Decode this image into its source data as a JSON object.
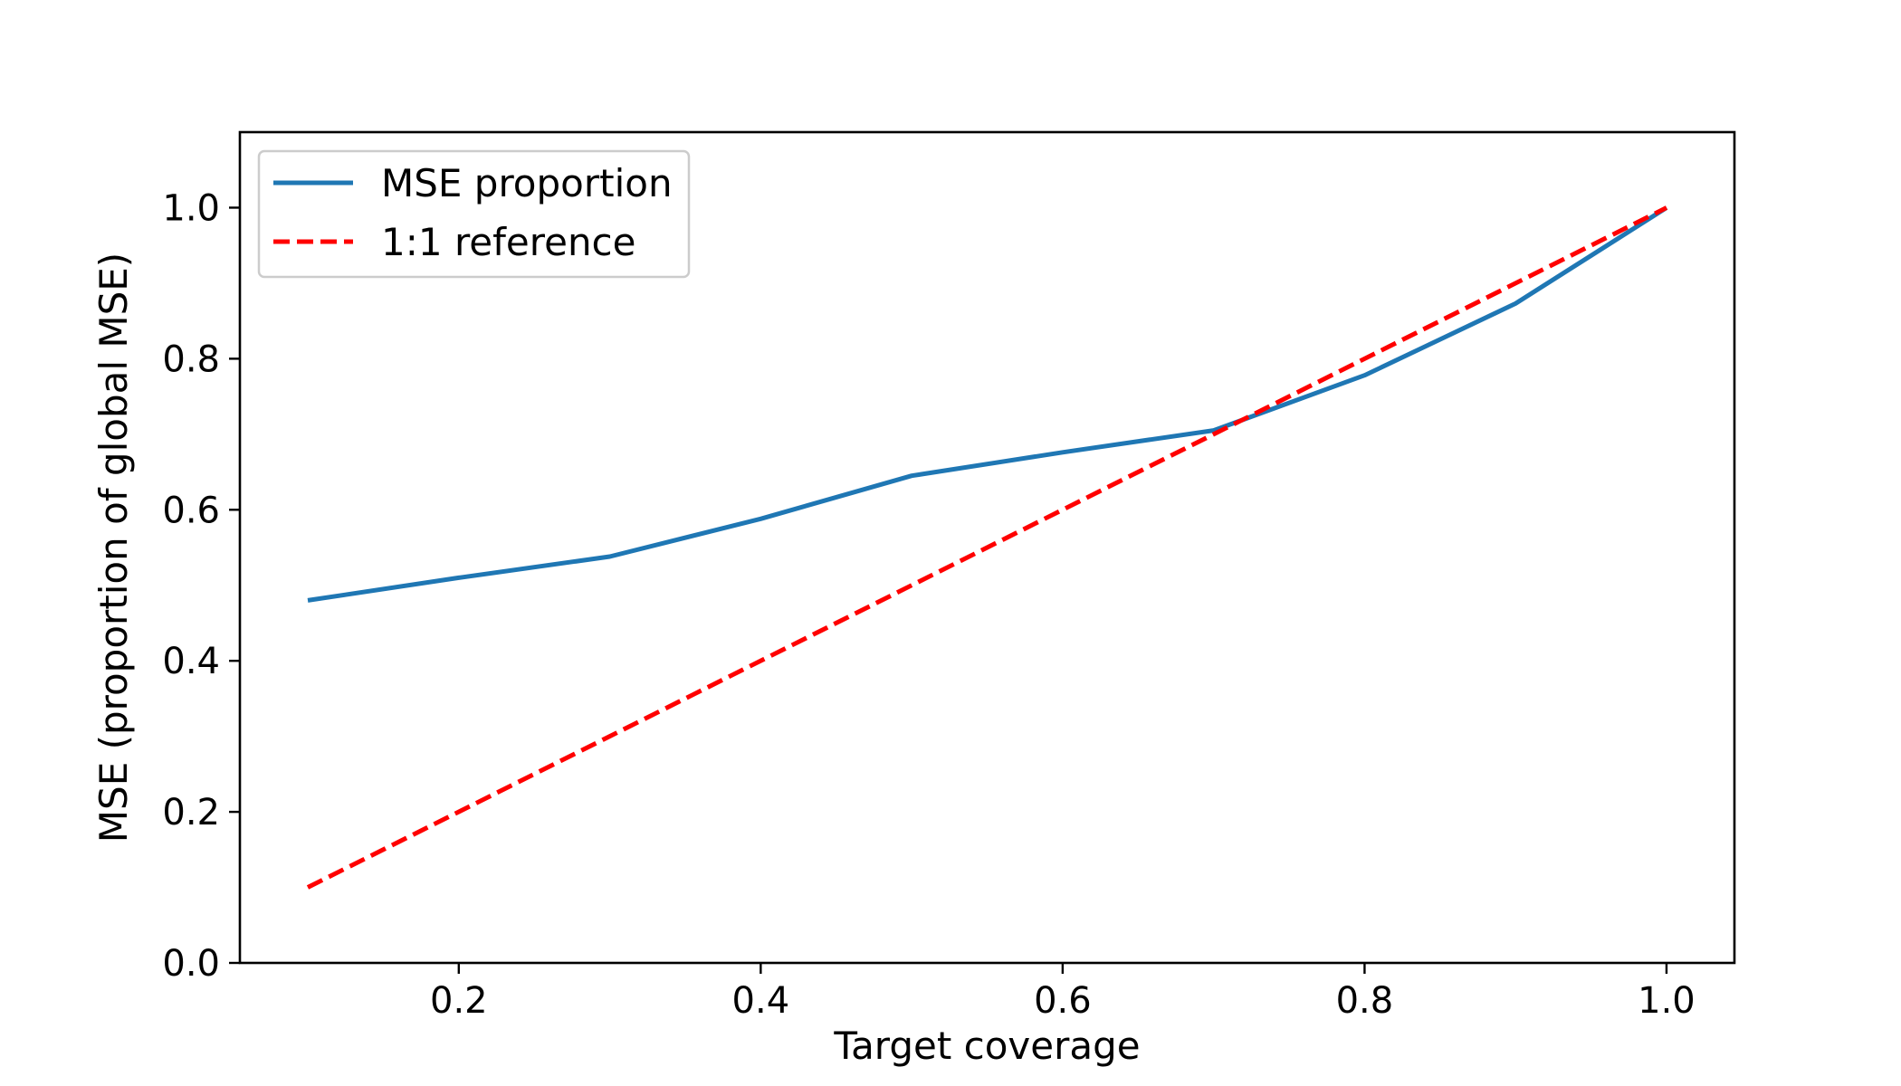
{
  "chart_data": {
    "type": "line",
    "title": "",
    "xlabel": "Target coverage",
    "ylabel": "MSE (proportion of global MSE)",
    "xlim": [
      0.055,
      1.045
    ],
    "ylim": [
      0.0,
      1.1
    ],
    "xticks": [
      0.2,
      0.4,
      0.6,
      0.8,
      1.0
    ],
    "xtick_labels": [
      "0.2",
      "0.4",
      "0.6",
      "0.8",
      "1.0"
    ],
    "yticks": [
      0.0,
      0.2,
      0.4,
      0.6,
      0.8,
      1.0
    ],
    "ytick_labels": [
      "0.0",
      "0.2",
      "0.4",
      "0.6",
      "0.8",
      "1.0"
    ],
    "grid": false,
    "legend": {
      "placement": "upper-left",
      "entries": [
        "MSE proportion",
        "1:1 reference"
      ]
    },
    "series": [
      {
        "name": "MSE proportion",
        "color": "#1f77b4",
        "style": "solid",
        "x": [
          0.1,
          0.2,
          0.3,
          0.4,
          0.5,
          0.6,
          0.7,
          0.8,
          0.9,
          1.0
        ],
        "y": [
          0.48,
          0.51,
          0.538,
          0.588,
          0.645,
          0.676,
          0.705,
          0.778,
          0.873,
          1.0
        ]
      },
      {
        "name": "1:1 reference",
        "color": "#ff0000",
        "style": "dashed",
        "x": [
          0.1,
          1.0
        ],
        "y": [
          0.1,
          1.0
        ]
      }
    ]
  }
}
